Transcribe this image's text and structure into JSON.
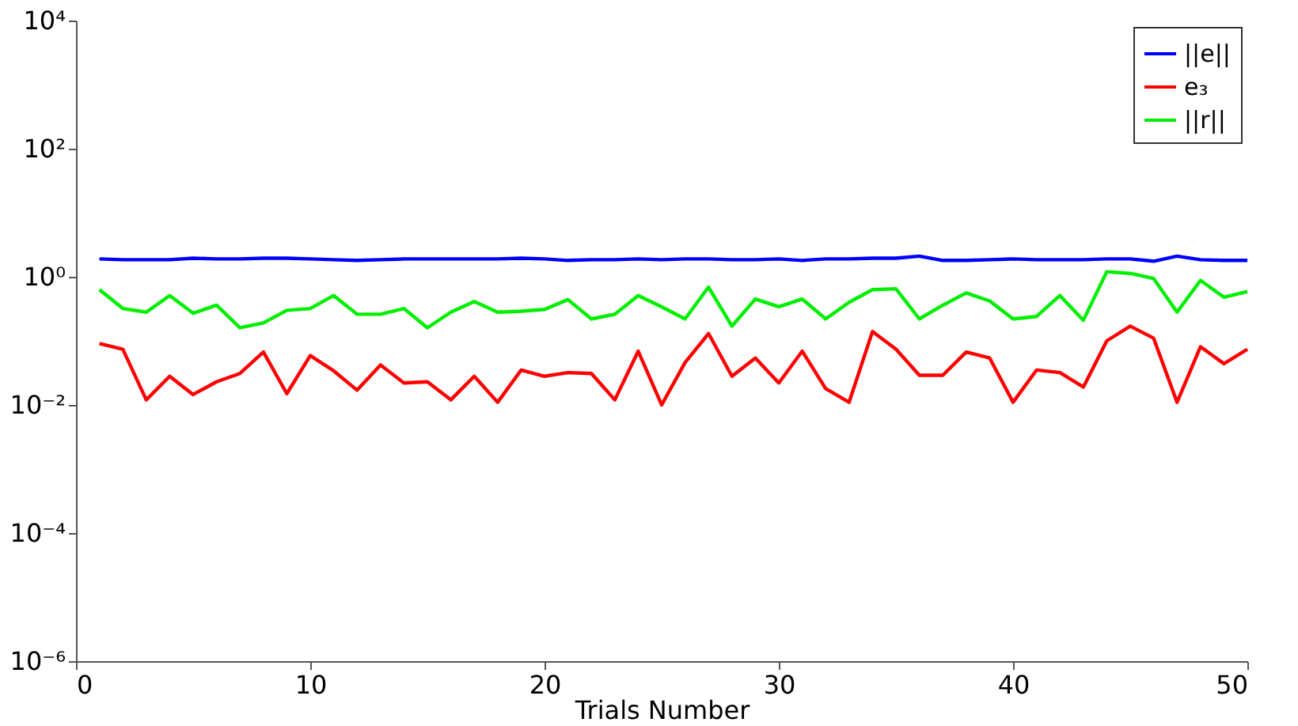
{
  "chart_data": {
    "type": "line",
    "xlabel": "Trials Number",
    "x": [
      1,
      2,
      3,
      4,
      5,
      6,
      7,
      8,
      9,
      10,
      11,
      12,
      13,
      14,
      15,
      16,
      17,
      18,
      19,
      20,
      21,
      22,
      23,
      24,
      25,
      26,
      27,
      28,
      29,
      30,
      31,
      32,
      33,
      34,
      35,
      36,
      37,
      38,
      39,
      40,
      41,
      42,
      43,
      44,
      45,
      46,
      47,
      48,
      49,
      50
    ],
    "series": [
      {
        "name": "||e||",
        "color": "#0000ff",
        "values": [
          1.9,
          1.85,
          1.85,
          1.85,
          1.95,
          1.9,
          1.9,
          1.95,
          1.95,
          1.9,
          1.85,
          1.8,
          1.85,
          1.9,
          1.9,
          1.9,
          1.9,
          1.9,
          1.95,
          1.9,
          1.8,
          1.85,
          1.85,
          1.9,
          1.85,
          1.9,
          1.9,
          1.85,
          1.85,
          1.9,
          1.8,
          1.9,
          1.9,
          1.95,
          1.95,
          2.1,
          1.8,
          1.8,
          1.85,
          1.9,
          1.85,
          1.85,
          1.85,
          1.9,
          1.9,
          1.75,
          2.1,
          1.85,
          1.8,
          1.8
        ]
      },
      {
        "name": "e₃",
        "color": "#ff0000",
        "values": [
          0.091,
          0.074,
          0.012,
          0.028,
          0.0145,
          0.023,
          0.031,
          0.067,
          0.015,
          0.059,
          0.034,
          0.017,
          0.042,
          0.022,
          0.023,
          0.012,
          0.028,
          0.011,
          0.035,
          0.028,
          0.032,
          0.031,
          0.012,
          0.069,
          0.01,
          0.046,
          0.13,
          0.028,
          0.054,
          0.022,
          0.069,
          0.018,
          0.011,
          0.14,
          0.074,
          0.029,
          0.029,
          0.067,
          0.054,
          0.011,
          0.035,
          0.032,
          0.019,
          0.1,
          0.17,
          0.11,
          0.011,
          0.081,
          0.044,
          0.074
        ]
      },
      {
        "name": "||r||",
        "color": "#00ee00",
        "values": [
          0.63,
          0.32,
          0.28,
          0.51,
          0.27,
          0.36,
          0.16,
          0.19,
          0.3,
          0.32,
          0.51,
          0.26,
          0.26,
          0.32,
          0.16,
          0.28,
          0.41,
          0.28,
          0.29,
          0.31,
          0.44,
          0.22,
          0.26,
          0.51,
          0.34,
          0.22,
          0.69,
          0.17,
          0.45,
          0.34,
          0.45,
          0.22,
          0.4,
          0.63,
          0.65,
          0.22,
          0.36,
          0.56,
          0.42,
          0.22,
          0.24,
          0.51,
          0.21,
          1.2,
          1.13,
          0.94,
          0.28,
          0.88,
          0.48,
          0.59
        ]
      }
    ],
    "xlim": [
      0,
      50
    ],
    "xticks": [
      0,
      10,
      20,
      30,
      40,
      50
    ],
    "ylim": [
      1e-06,
      10000
    ],
    "yticks": [
      {
        "value": 1e-06,
        "label": "10⁻⁶"
      },
      {
        "value": 0.0001,
        "label": "10⁻⁴"
      },
      {
        "value": 0.01,
        "label": "10⁻²"
      },
      {
        "value": 1,
        "label": "10⁰"
      },
      {
        "value": 100,
        "label": "10²"
      },
      {
        "value": 10000,
        "label": "10⁴"
      }
    ],
    "log": true,
    "grid": false,
    "legend": "top right",
    "marker": "none",
    "line_style": "solid"
  }
}
